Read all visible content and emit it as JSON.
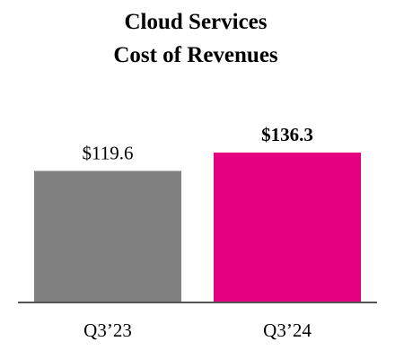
{
  "chart_data": {
    "type": "bar",
    "title": [
      "Cloud Services",
      "Cost of Revenues"
    ],
    "categories": [
      "Q3’23",
      "Q3’24"
    ],
    "values": [
      119.6,
      136.3
    ],
    "data_labels": [
      "$119.6",
      "$136.3"
    ],
    "highlighted_label": [
      false,
      true
    ],
    "bar_colors": [
      "#808080",
      "#e4007f"
    ],
    "axis_color": "#555555",
    "ylim": [
      0,
      136.3
    ],
    "grid": false,
    "legend": "none"
  }
}
